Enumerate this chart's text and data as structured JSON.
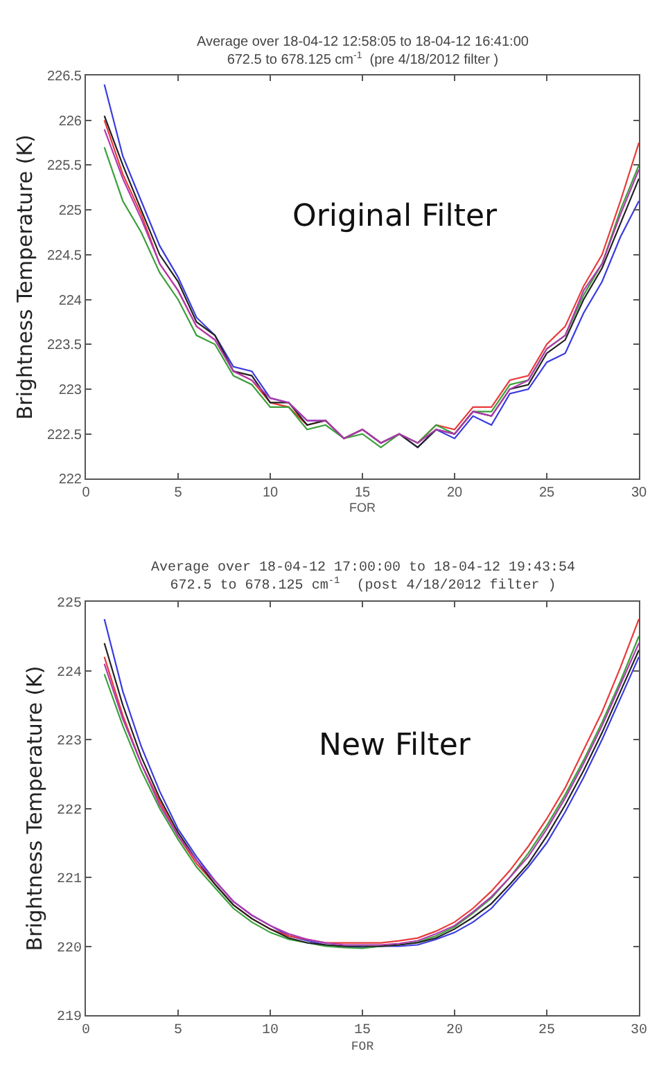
{
  "chart_data": [
    {
      "type": "line",
      "title": "Average over 18-04-12 12:58:05 to 18-04-12 16:41:00",
      "subtitle": "672.5 to 678.125 cm$^{-1}$  (pre 4/18/2012 filter )",
      "xlabel": "FOR",
      "ylabel": "Brightness Temperature (K)",
      "annotations": [
        "Original Filter"
      ],
      "x": [
        1,
        2,
        3,
        4,
        5,
        6,
        7,
        8,
        9,
        10,
        11,
        12,
        13,
        14,
        15,
        16,
        17,
        18,
        19,
        20,
        21,
        22,
        23,
        24,
        25,
        26,
        27,
        28,
        29,
        30
      ],
      "xlim": [
        0,
        30
      ],
      "xticks": [
        0,
        5,
        10,
        15,
        20,
        25,
        30
      ],
      "ylim": [
        222,
        226.5
      ],
      "yticks": [
        222,
        222.5,
        223,
        223.5,
        224,
        224.5,
        225,
        225.5,
        226,
        226.5
      ],
      "series": [
        {
          "color": "#3a3adf",
          "values": [
            226.4,
            225.6,
            225.1,
            224.6,
            224.25,
            223.8,
            223.6,
            223.25,
            223.2,
            222.9,
            222.85,
            222.65,
            222.65,
            222.45,
            222.55,
            222.4,
            222.5,
            222.35,
            222.55,
            222.45,
            222.7,
            222.6,
            222.95,
            223.0,
            223.3,
            223.4,
            223.85,
            224.2,
            224.7,
            225.1
          ]
        },
        {
          "color": "#e83a3a",
          "values": [
            226.0,
            225.4,
            224.95,
            224.4,
            224.1,
            223.7,
            223.55,
            223.2,
            223.1,
            222.85,
            222.8,
            222.6,
            222.65,
            222.45,
            222.55,
            222.4,
            222.5,
            222.4,
            222.6,
            222.55,
            222.8,
            222.8,
            223.1,
            223.15,
            223.5,
            223.7,
            224.15,
            224.5,
            225.1,
            225.75
          ]
        },
        {
          "color": "#3aa03a",
          "values": [
            225.7,
            225.1,
            224.75,
            224.3,
            224.0,
            223.6,
            223.5,
            223.15,
            223.05,
            222.8,
            222.8,
            222.55,
            222.6,
            222.45,
            222.5,
            222.35,
            222.5,
            222.4,
            222.6,
            222.5,
            222.75,
            222.75,
            223.05,
            223.1,
            223.45,
            223.6,
            224.05,
            224.4,
            225.0,
            225.5
          ]
        },
        {
          "color": "#222222",
          "values": [
            226.05,
            225.5,
            225.0,
            224.5,
            224.2,
            223.75,
            223.6,
            223.2,
            223.15,
            222.85,
            222.85,
            222.6,
            222.65,
            222.45,
            222.55,
            222.4,
            222.5,
            222.35,
            222.55,
            222.5,
            222.75,
            222.7,
            223.0,
            223.05,
            223.4,
            223.55,
            224.0,
            224.35,
            224.85,
            225.35
          ]
        },
        {
          "color": "#b03ab0",
          "values": [
            225.9,
            225.35,
            224.9,
            224.4,
            224.1,
            223.7,
            223.55,
            223.2,
            223.1,
            222.9,
            222.85,
            222.65,
            222.65,
            222.45,
            222.55,
            222.4,
            222.5,
            222.4,
            222.55,
            222.5,
            222.75,
            222.7,
            223.0,
            223.1,
            223.45,
            223.6,
            224.1,
            224.4,
            224.95,
            225.45
          ]
        }
      ]
    },
    {
      "type": "line",
      "title": "Average over 18-04-12 17:00:00 to 18-04-12 19:43:54",
      "subtitle": "672.5 to 678.125 cm$^{-1}$  (post 4/18/2012 filter )",
      "xlabel": "FOR",
      "ylabel": "Brightness Temperature (K)",
      "annotations": [
        "New Filter"
      ],
      "x": [
        1,
        2,
        3,
        4,
        5,
        6,
        7,
        8,
        9,
        10,
        11,
        12,
        13,
        14,
        15,
        16,
        17,
        18,
        19,
        20,
        21,
        22,
        23,
        24,
        25,
        26,
        27,
        28,
        29,
        30
      ],
      "xlim": [
        0,
        30
      ],
      "xticks": [
        0,
        5,
        10,
        15,
        20,
        25,
        30
      ],
      "ylim": [
        219,
        225
      ],
      "yticks": [
        219,
        220,
        221,
        222,
        223,
        224,
        225
      ],
      "series": [
        {
          "color": "#3a3adf",
          "values": [
            224.75,
            223.7,
            222.9,
            222.25,
            221.7,
            221.3,
            220.95,
            220.65,
            220.45,
            220.3,
            220.15,
            220.08,
            220.02,
            220.0,
            219.98,
            220.0,
            220.0,
            220.02,
            220.1,
            220.2,
            220.35,
            220.55,
            220.85,
            221.15,
            221.5,
            221.95,
            222.45,
            223.0,
            223.6,
            224.2
          ]
        },
        {
          "color": "#e83a3a",
          "values": [
            224.2,
            223.35,
            222.65,
            222.1,
            221.6,
            221.2,
            220.9,
            220.6,
            220.4,
            220.25,
            220.15,
            220.1,
            220.05,
            220.05,
            220.05,
            220.05,
            220.08,
            220.12,
            220.22,
            220.35,
            220.55,
            220.8,
            221.1,
            221.45,
            221.85,
            222.3,
            222.85,
            223.4,
            224.05,
            224.75
          ]
        },
        {
          "color": "#3aa03a",
          "values": [
            223.95,
            223.2,
            222.55,
            222.0,
            221.55,
            221.15,
            220.85,
            220.55,
            220.35,
            220.2,
            220.1,
            220.05,
            220.0,
            219.98,
            219.97,
            220.0,
            220.02,
            220.06,
            220.15,
            220.28,
            220.48,
            220.7,
            221.0,
            221.35,
            221.75,
            222.2,
            222.7,
            223.25,
            223.85,
            224.5
          ]
        },
        {
          "color": "#222222",
          "values": [
            224.4,
            223.5,
            222.75,
            222.15,
            221.65,
            221.25,
            220.9,
            220.6,
            220.4,
            220.25,
            220.12,
            220.05,
            220.02,
            220.0,
            220.0,
            220.0,
            220.02,
            220.05,
            220.12,
            220.25,
            220.42,
            220.62,
            220.9,
            221.2,
            221.6,
            222.05,
            222.55,
            223.1,
            223.7,
            224.3
          ]
        },
        {
          "color": "#b03ab0",
          "values": [
            224.1,
            223.3,
            222.65,
            222.05,
            221.6,
            221.25,
            220.95,
            220.65,
            220.45,
            220.3,
            220.18,
            220.1,
            220.05,
            220.02,
            220.02,
            220.02,
            220.04,
            220.08,
            220.18,
            220.3,
            220.5,
            220.72,
            221.0,
            221.3,
            221.7,
            222.15,
            222.65,
            223.2,
            223.8,
            224.4
          ]
        }
      ]
    }
  ]
}
